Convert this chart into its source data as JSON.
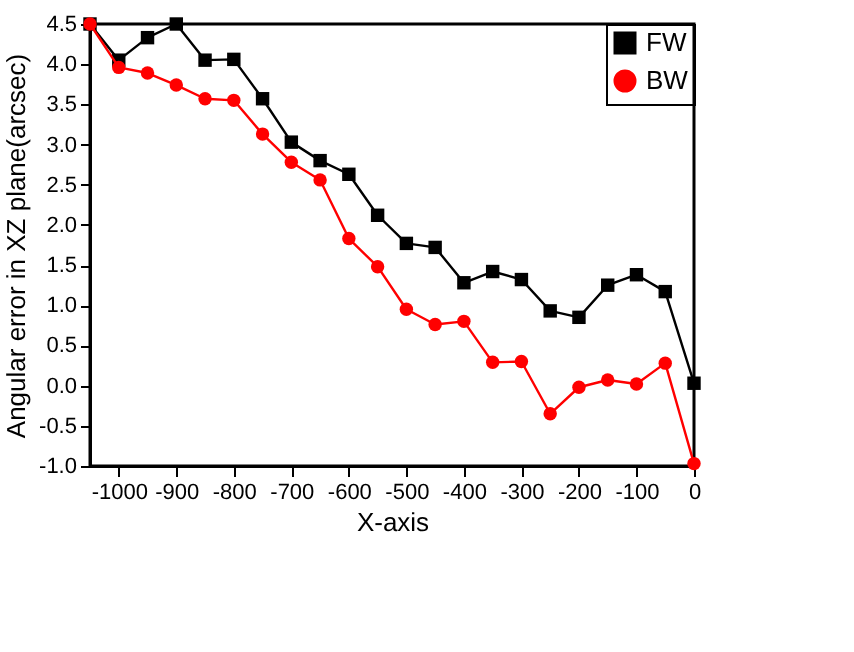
{
  "chart_data": {
    "type": "line",
    "xlabel": "X-axis",
    "ylabel": "Angular error in XZ plane(arcsec)",
    "x": [
      -1050,
      -1000,
      -950,
      -900,
      -850,
      -800,
      -750,
      -700,
      -650,
      -600,
      -550,
      -500,
      -450,
      -400,
      -350,
      -300,
      -250,
      -200,
      -150,
      -100,
      -50,
      0
    ],
    "series": [
      {
        "name": "FW",
        "color": "#000000",
        "marker": "square",
        "values": [
          4.5,
          4.05,
          4.33,
          4.5,
          4.05,
          4.06,
          3.57,
          3.03,
          2.8,
          2.63,
          2.12,
          1.77,
          1.72,
          1.28,
          1.42,
          1.32,
          0.93,
          0.85,
          1.25,
          1.38,
          1.17,
          0.03
        ]
      },
      {
        "name": "BW",
        "color": "#ff0000",
        "marker": "circle",
        "values": [
          4.5,
          3.96,
          3.89,
          3.74,
          3.57,
          3.55,
          3.13,
          2.78,
          2.56,
          1.83,
          1.48,
          0.95,
          0.76,
          0.8,
          0.29,
          0.3,
          -0.35,
          -0.02,
          0.07,
          0.02,
          0.28,
          -0.97
        ]
      }
    ],
    "xlim": [
      -1050,
      0
    ],
    "xticks": [
      -1000,
      -900,
      -800,
      -700,
      -600,
      -500,
      -400,
      -300,
      -200,
      -100,
      0
    ],
    "ylim": [
      -1,
      4.5
    ],
    "yticks": [
      {
        "value": -1,
        "label": "-1.0"
      },
      {
        "value": -0.5,
        "label": "-0.5"
      },
      {
        "value": 0,
        "label": "0.0"
      },
      {
        "value": 0.5,
        "label": "0.5"
      },
      {
        "value": 1,
        "label": "1.0"
      },
      {
        "value": 1.5,
        "label": "1.5"
      },
      {
        "value": 2,
        "label": "2.0"
      },
      {
        "value": 2.5,
        "label": "2.5"
      },
      {
        "value": 3,
        "label": "3.0"
      },
      {
        "value": 3.5,
        "label": "3.5"
      },
      {
        "value": 4,
        "label": "4.0"
      },
      {
        "value": 4.5,
        "label": "4.5"
      }
    ],
    "legend": "top right",
    "grid": false
  }
}
